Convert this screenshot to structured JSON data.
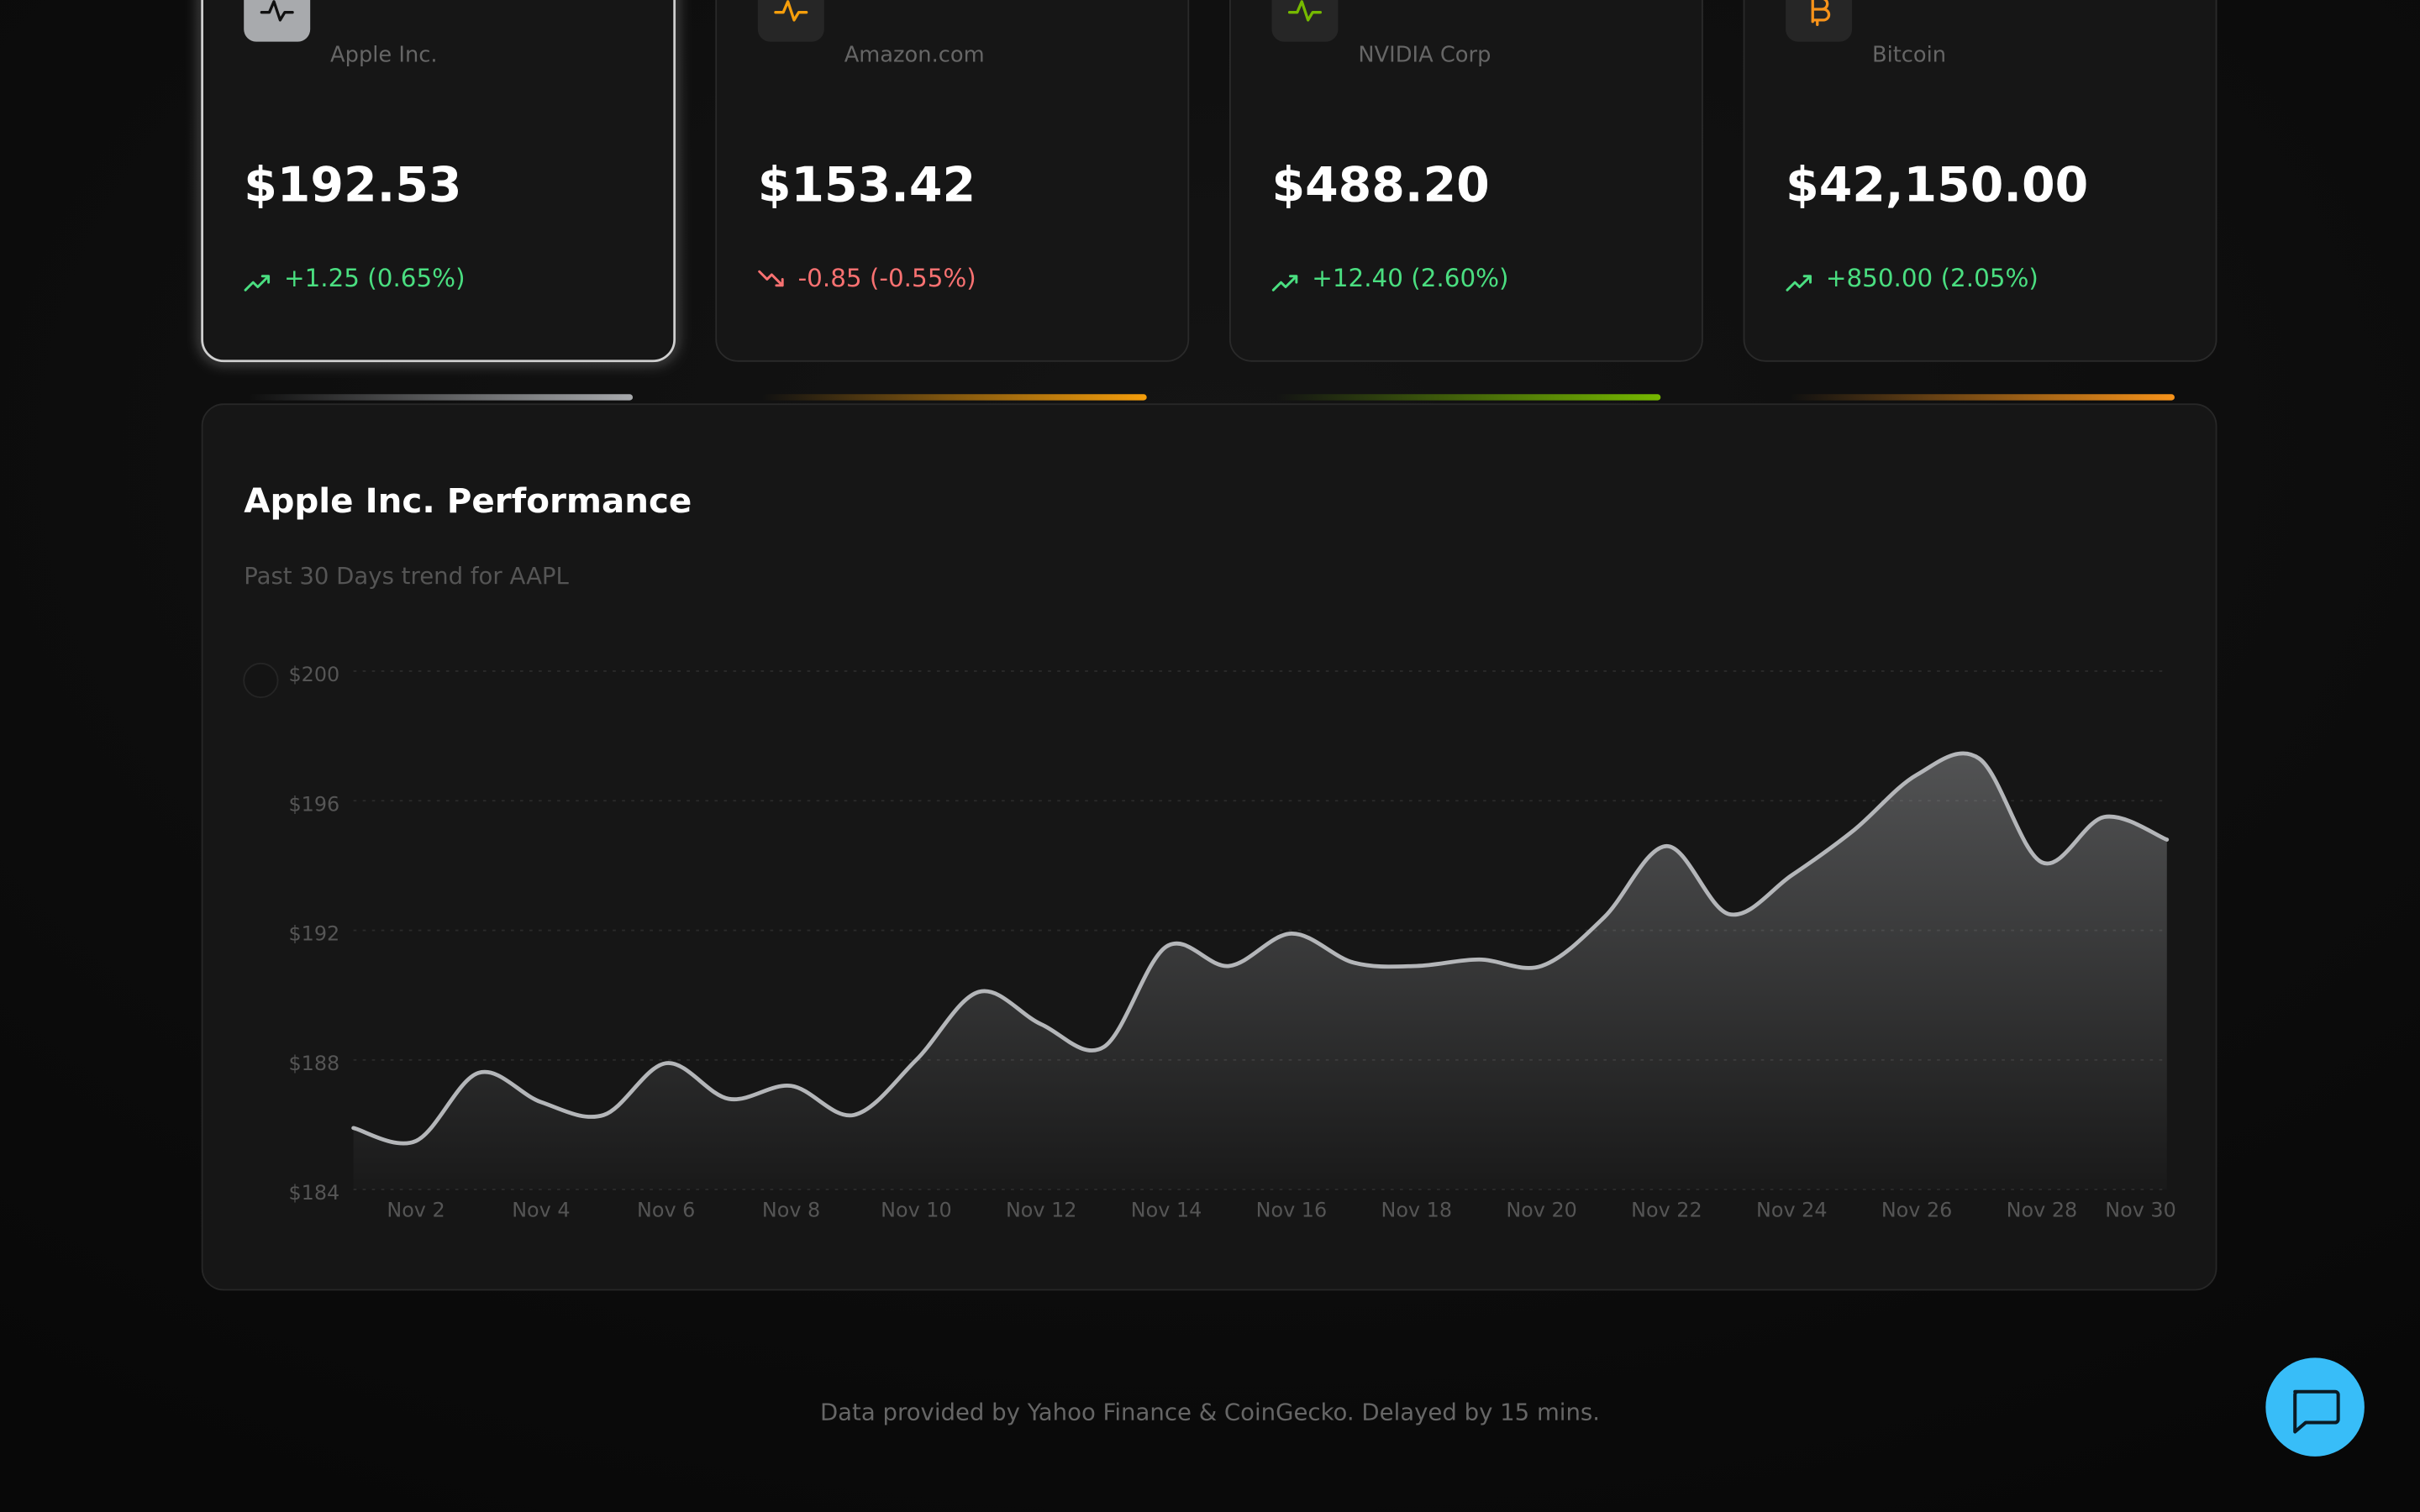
{
  "cards": [
    {
      "name": "Apple Inc.",
      "price": "$192.53",
      "change": "+1.25 (0.65%)",
      "accent": "#a8aaad",
      "change_color": "#4ade80",
      "trend": "up",
      "selected": true
    },
    {
      "name": "Amazon.com",
      "price": "$153.42",
      "change": "-0.85 (-0.55%)",
      "accent": "#f59e0b",
      "change_color": "#f87171",
      "trend": "down",
      "selected": false
    },
    {
      "name": "NVIDIA Corp",
      "price": "$488.20",
      "change": "+12.40 (2.60%)",
      "accent": "#76b900",
      "change_color": "#4ade80",
      "trend": "up",
      "selected": false
    },
    {
      "name": "Bitcoin",
      "price": "$42,150.00",
      "change": "+850.00 (2.05%)",
      "accent": "#f7931a",
      "change_color": "#4ade80",
      "trend": "up",
      "selected": false
    }
  ],
  "chart_data": {
    "type": "area",
    "title": "Apple Inc. Performance",
    "subtitle": "Past 30 Days trend for AAPL",
    "categories": [
      null,
      "Nov 2",
      null,
      "Nov 4",
      null,
      "Nov 6",
      null,
      "Nov 8",
      null,
      "Nov 10",
      null,
      "Nov 12",
      null,
      "Nov 14",
      null,
      "Nov 16",
      null,
      "Nov 18",
      null,
      "Nov 20",
      null,
      "Nov 22",
      null,
      "Nov 24",
      null,
      "Nov 26",
      null,
      "Nov 28",
      null,
      "Nov 30"
    ],
    "series": [
      {
        "name": "AAPL",
        "color": "#b4b6b9",
        "values": [
          185.9,
          185.5,
          187.6,
          186.7,
          186.3,
          187.9,
          186.8,
          187.2,
          186.3,
          188.0,
          190.1,
          189.1,
          188.4,
          191.5,
          190.9,
          191.9,
          191.0,
          190.9,
          191.1,
          190.9,
          192.4,
          194.6,
          192.5,
          193.7,
          195.1,
          196.8,
          197.3,
          194.1,
          195.5,
          194.8
        ]
      }
    ],
    "ylim": [
      184,
      200
    ],
    "yticks": [
      {
        "value": 184,
        "label": "$184"
      },
      {
        "value": 188,
        "label": "$188"
      },
      {
        "value": 192,
        "label": "$192"
      },
      {
        "value": 196,
        "label": "$196"
      },
      {
        "value": 200,
        "label": "$200"
      }
    ],
    "grid": true
  },
  "footer": "Data provided by Yahoo Finance & CoinGecko. Delayed by 15 mins."
}
